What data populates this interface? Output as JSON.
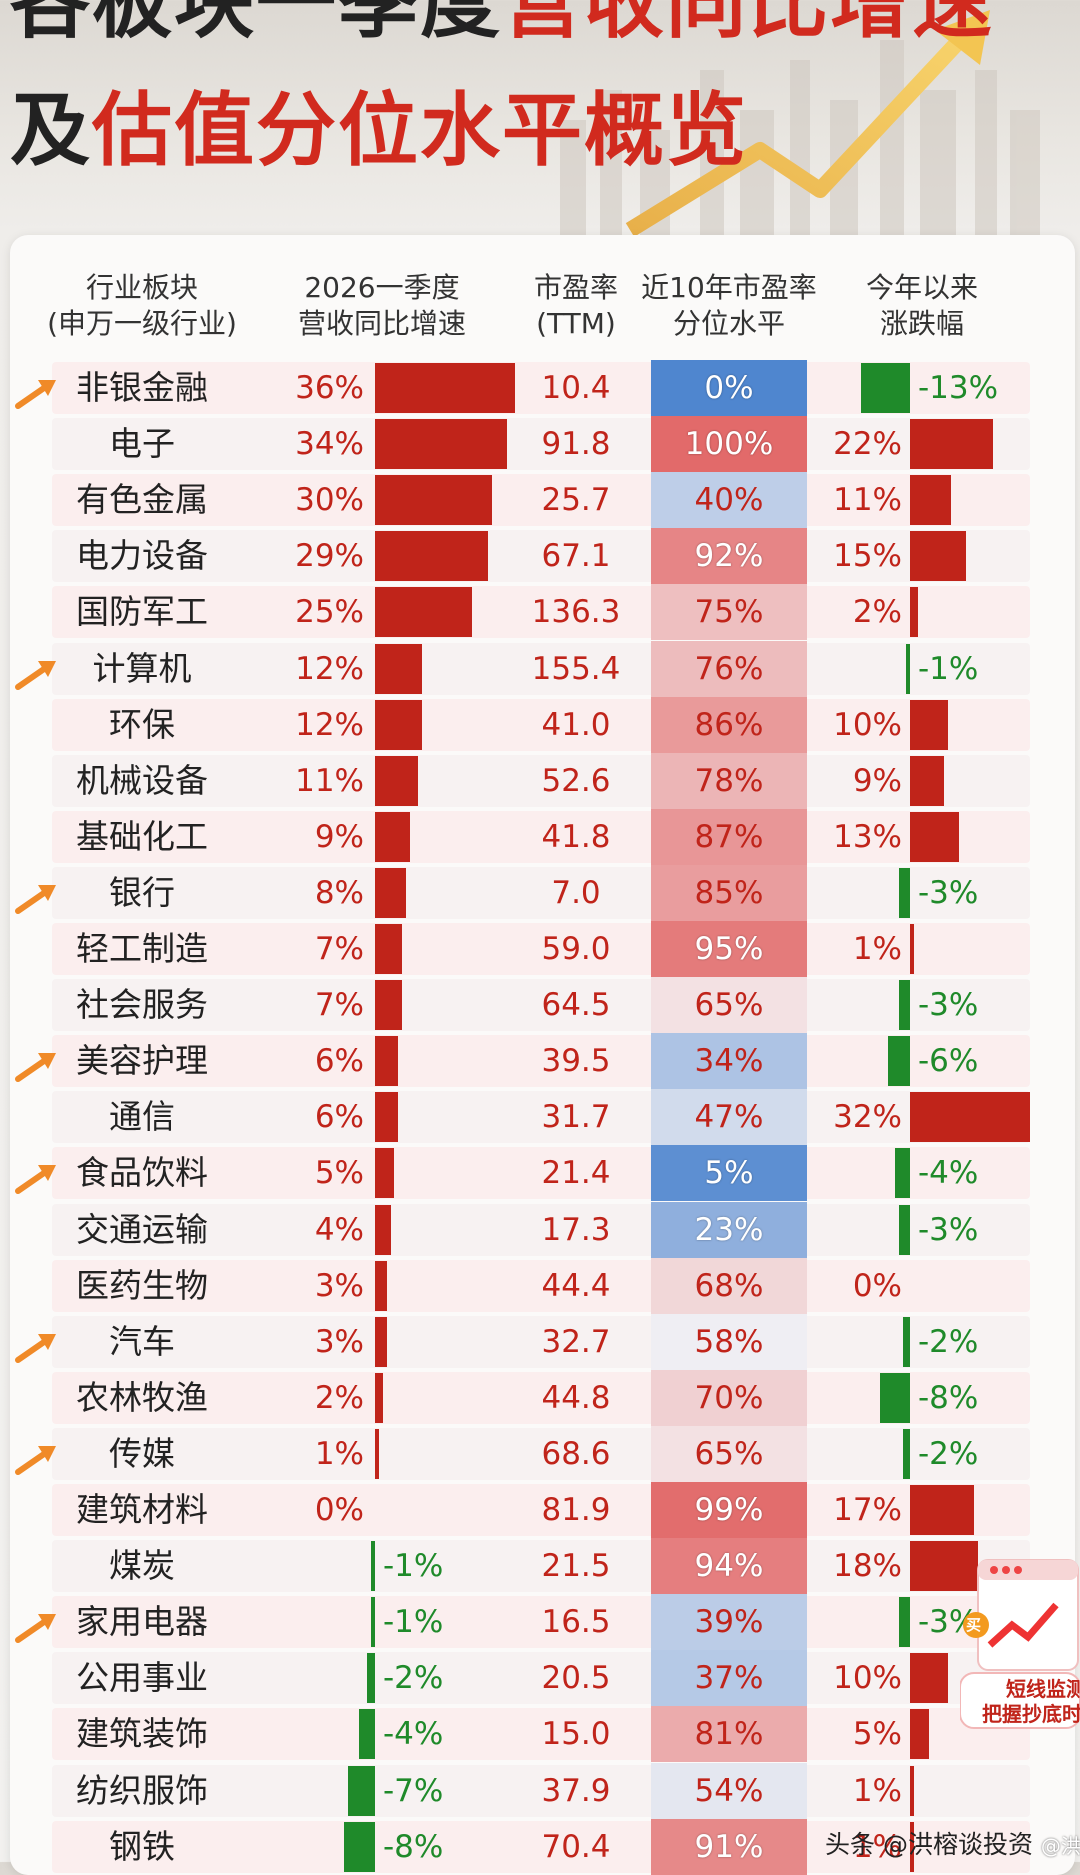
{
  "title": {
    "line1_dark": "各板块一季度",
    "line1_red": "营收同比增速",
    "line2_dark": "及",
    "line2_red": "估值分位水平概览"
  },
  "headers": {
    "sector": [
      "行业板块",
      "(申万一级行业)"
    ],
    "revenue": [
      "2026一季度",
      "营收同比增速"
    ],
    "pe": [
      "市盈率",
      "(TTM)"
    ],
    "pe_pct": [
      "近10年市盈率",
      "分位水平"
    ],
    "ytd": [
      "今年以来",
      "涨跌幅"
    ]
  },
  "chart_data": {
    "type": "table",
    "columns": [
      "行业板块(申万一级行业)",
      "2026一季度营收同比增速",
      "市盈率(TTM)",
      "近10年市盈率分位水平",
      "今年以来涨跌幅"
    ],
    "rows": [
      {
        "name": "非银金融",
        "rev": 36,
        "pe": "10.4",
        "pct": 0,
        "ytd": -13,
        "arrow": true
      },
      {
        "name": "电子",
        "rev": 34,
        "pe": "91.8",
        "pct": 100,
        "ytd": 22
      },
      {
        "name": "有色金属",
        "rev": 30,
        "pe": "25.7",
        "pct": 40,
        "ytd": 11
      },
      {
        "name": "电力设备",
        "rev": 29,
        "pe": "67.1",
        "pct": 92,
        "ytd": 15
      },
      {
        "name": "国防军工",
        "rev": 25,
        "pe": "136.3",
        "pct": 75,
        "ytd": 2
      },
      {
        "name": "计算机",
        "rev": 12,
        "pe": "155.4",
        "pct": 76,
        "ytd": -1,
        "arrow": true
      },
      {
        "name": "环保",
        "rev": 12,
        "pe": "41.0",
        "pct": 86,
        "ytd": 10
      },
      {
        "name": "机械设备",
        "rev": 11,
        "pe": "52.6",
        "pct": 78,
        "ytd": 9
      },
      {
        "name": "基础化工",
        "rev": 9,
        "pe": "41.8",
        "pct": 87,
        "ytd": 13
      },
      {
        "name": "银行",
        "rev": 8,
        "pe": "7.0",
        "pct": 85,
        "ytd": -3,
        "arrow": true
      },
      {
        "name": "轻工制造",
        "rev": 7,
        "pe": "59.0",
        "pct": 95,
        "ytd": 1
      },
      {
        "name": "社会服务",
        "rev": 7,
        "pe": "64.5",
        "pct": 65,
        "ytd": -3
      },
      {
        "name": "美容护理",
        "rev": 6,
        "pe": "39.5",
        "pct": 34,
        "ytd": -6,
        "arrow": true
      },
      {
        "name": "通信",
        "rev": 6,
        "pe": "31.7",
        "pct": 47,
        "ytd": 32
      },
      {
        "name": "食品饮料",
        "rev": 5,
        "pe": "21.4",
        "pct": 5,
        "ytd": -4,
        "arrow": true
      },
      {
        "name": "交通运输",
        "rev": 4,
        "pe": "17.3",
        "pct": 23,
        "ytd": -3
      },
      {
        "name": "医药生物",
        "rev": 3,
        "pe": "44.4",
        "pct": 68,
        "ytd": 0
      },
      {
        "name": "汽车",
        "rev": 3,
        "pe": "32.7",
        "pct": 58,
        "ytd": -2,
        "arrow": true
      },
      {
        "name": "农林牧渔",
        "rev": 2,
        "pe": "44.8",
        "pct": 70,
        "ytd": -8
      },
      {
        "name": "传媒",
        "rev": 1,
        "pe": "68.6",
        "pct": 65,
        "ytd": -2,
        "arrow": true
      },
      {
        "name": "建筑材料",
        "rev": 0,
        "pe": "81.9",
        "pct": 99,
        "ytd": 17
      },
      {
        "name": "煤炭",
        "rev": -1,
        "pe": "21.5",
        "pct": 94,
        "ytd": 18
      },
      {
        "name": "家用电器",
        "rev": -1,
        "pe": "16.5",
        "pct": 39,
        "ytd": -3,
        "arrow": true
      },
      {
        "name": "公用事业",
        "rev": -2,
        "pe": "20.5",
        "pct": 37,
        "ytd": 10
      },
      {
        "name": "建筑装饰",
        "rev": -4,
        "pe": "15.0",
        "pct": 81,
        "ytd": 5
      },
      {
        "name": "纺织服饰",
        "rev": -7,
        "pe": "37.9",
        "pct": 54,
        "ytd": 1
      },
      {
        "name": "钢铁",
        "rev": -8,
        "pe": "70.4",
        "pct": 91,
        "ytd": 1
      }
    ]
  },
  "colors": {
    "positive": "#c0241a",
    "negative": "#1f8a2a",
    "high_pct": "#e26a6a",
    "low_pct": "#4f86cf",
    "arrow": "#f08a28"
  },
  "ad": {
    "line1": "短线监测",
    "line2": "把握抄底时",
    "badge": "买"
  },
  "footer": {
    "watermark": "头条 @洪榕谈投资",
    "watermark2": "@洪榕"
  }
}
